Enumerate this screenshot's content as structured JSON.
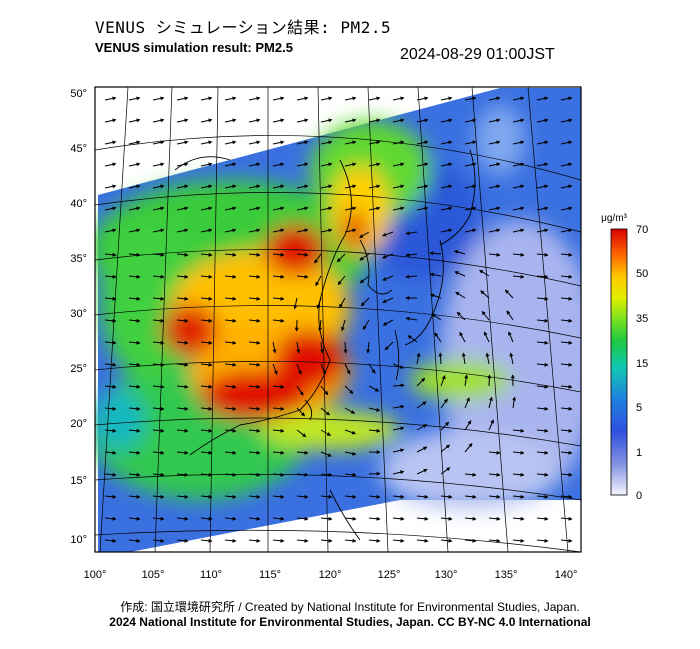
{
  "header": {
    "title_jp": "VENUS シミュレーション結果: PM2.5",
    "title_en": "VENUS simulation result: PM2.5",
    "timestamp": "2024-08-29 01:00JST"
  },
  "map": {
    "lat_labels": [
      "50°",
      "45°",
      "40°",
      "35°",
      "30°",
      "25°",
      "20°",
      "15°",
      "10°"
    ],
    "lon_labels": [
      "100°",
      "105°",
      "110°",
      "115°",
      "120°",
      "125°",
      "130°",
      "135°",
      "140°"
    ],
    "field": "PM2.5 concentration with wind vectors"
  },
  "colorbar": {
    "unit": "μg/m³",
    "ticks": [
      "70",
      "50",
      "35",
      "15",
      "5",
      "1",
      "0"
    ],
    "colors": [
      "#d90000",
      "#ff6a00",
      "#ffc800",
      "#e0f000",
      "#7ae020",
      "#20c840",
      "#10c8b0",
      "#2080e0",
      "#3050e0",
      "#8090e0",
      "#f4f4ff"
    ]
  },
  "footer": {
    "credit_line": "作成: 国立環境研究所 / Created by National Institute for Environmental Studies, Japan.",
    "license_line": "2024 National Institute for Environmental Studies, Japan. CC BY-NC 4.0 International"
  }
}
